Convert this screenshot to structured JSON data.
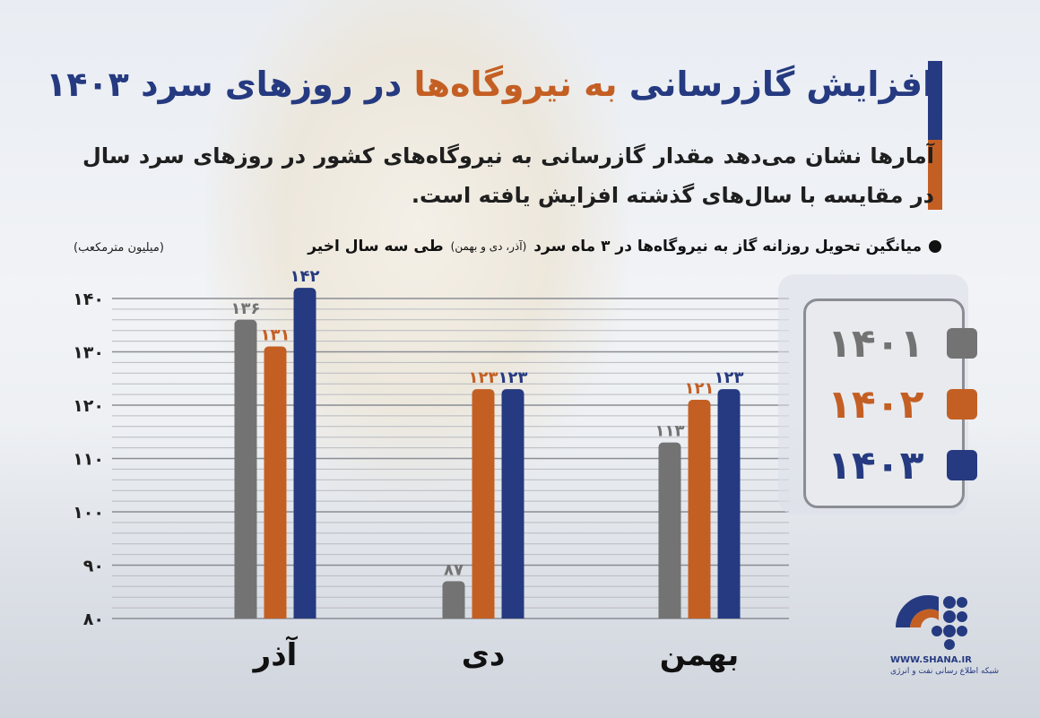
{
  "title": {
    "part1": "افزایش گازرسانی",
    "part2": "به نیروگاه‌ها",
    "part3": "در روزهای سرد ۱۴۰۳"
  },
  "subtitle": "آمارها نشان می‌دهد مقدار گازرسانی به نیروگاه‌های کشور در روزهای سرد سال در مقایسه با سال‌های گذشته افزایش یافته است.",
  "caption": {
    "main": "میانگین تحویل روزانه گاز به نیروگاه‌ها در ۳ ماه سرد",
    "detail": "(آذر، دی و بهمن)",
    "tail": "طی سه سال اخیر"
  },
  "unit": "(میلیون مترمکعب)",
  "logo": {
    "site": "WWW.SHANA.IR",
    "name": "شبکه اطلاع رسانی نفت و انرژی"
  },
  "chart_data": {
    "type": "bar",
    "categories": [
      "آذر",
      "دی",
      "بهمن"
    ],
    "ylim": [
      80,
      140
    ],
    "y_ticks": [
      {
        "value": 80,
        "label": "۸۰"
      },
      {
        "value": 90,
        "label": "۹۰"
      },
      {
        "value": 100,
        "label": "۱۰۰"
      },
      {
        "value": 110,
        "label": "۱۱۰"
      },
      {
        "value": 120,
        "label": "۱۲۰"
      },
      {
        "value": 130,
        "label": "۱۳۰"
      },
      {
        "value": 140,
        "label": "۱۴۰"
      }
    ],
    "grid": true,
    "legend_position": "right",
    "series": [
      {
        "name": "۱۴۰۱",
        "color": "#737373",
        "values": [
          136,
          87,
          113
        ],
        "labels": [
          "۱۳۶",
          "۸۷",
          "۱۱۳"
        ]
      },
      {
        "name": "۱۴۰۲",
        "color": "#c45f24",
        "values": [
          131,
          123,
          121
        ],
        "labels": [
          "۱۳۱",
          "۱۲۳",
          "۱۲۱"
        ]
      },
      {
        "name": "۱۴۰۳",
        "color": "#253a80",
        "values": [
          142,
          123,
          123
        ],
        "labels": [
          "۱۴۲",
          "۱۲۳",
          "۱۲۳"
        ]
      }
    ]
  }
}
